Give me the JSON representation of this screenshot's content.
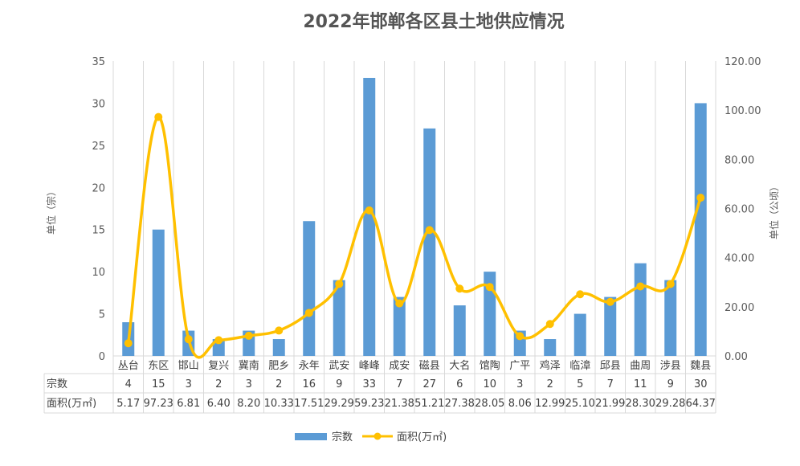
{
  "chart_data": {
    "type": "bar",
    "title": "2022年邯郸各区县土地供应情况",
    "categories": [
      "丛台",
      "东区",
      "邯山",
      "复兴",
      "冀南",
      "肥乡",
      "永年",
      "武安",
      "峰峰",
      "成安",
      "磁县",
      "大名",
      "馆陶",
      "广平",
      "鸡泽",
      "临漳",
      "邱县",
      "曲周",
      "涉县",
      "魏县"
    ],
    "series": [
      {
        "name": "宗数",
        "type": "bar",
        "axis": "left",
        "color": "#5B9BD5",
        "values": [
          4,
          15,
          3,
          2,
          3,
          2,
          16,
          9,
          33,
          7,
          27,
          6,
          10,
          3,
          2,
          5,
          7,
          11,
          9,
          30
        ]
      },
      {
        "name": "面积(万㎡)",
        "type": "line",
        "axis": "right",
        "color": "#FFC000",
        "values": [
          5.17,
          97.23,
          6.81,
          6.4,
          8.2,
          10.33,
          17.51,
          29.29,
          59.23,
          21.38,
          51.21,
          27.38,
          28.05,
          8.06,
          12.99,
          25.1,
          21.99,
          28.3,
          29.28,
          64.37
        ]
      }
    ],
    "y_left": {
      "label": "单位（宗）",
      "min": 0,
      "max": 35,
      "ticks": [
        "0",
        "5",
        "10",
        "15",
        "20",
        "25",
        "30",
        "35"
      ]
    },
    "y_right": {
      "label": "单位（公顷）",
      "min": 0,
      "max": 120,
      "ticks": [
        "0.00",
        "20.00",
        "40.00",
        "60.00",
        "80.00",
        "100.00",
        "120.00"
      ]
    },
    "table": {
      "row_labels": [
        "宗数",
        "面积(万㎡)"
      ],
      "rows": [
        [
          "4",
          "15",
          "3",
          "2",
          "3",
          "2",
          "16",
          "9",
          "33",
          "7",
          "27",
          "6",
          "10",
          "3",
          "2",
          "5",
          "7",
          "11",
          "9",
          "30"
        ],
        [
          "5.17",
          "97.23",
          "6.81",
          "6.40",
          "8.20",
          "10.33",
          "17.51",
          "29.29",
          "59.23",
          "21.38",
          "51.21",
          "27.38",
          "28.05",
          "8.06",
          "12.99",
          "25.10",
          "21.99",
          "28.30",
          "29.28",
          "64.37"
        ]
      ]
    },
    "legend_position": "bottom",
    "grid": "vertical category separators"
  }
}
